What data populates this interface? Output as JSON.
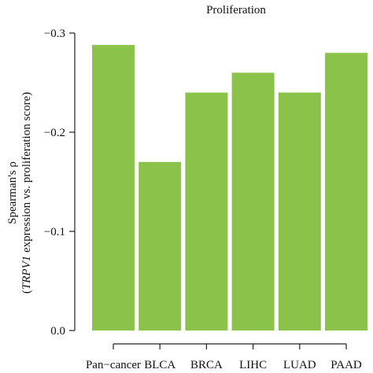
{
  "chart_data": {
    "type": "bar",
    "title": "Proliferation",
    "ylabel_line1": "Spearman's ρ",
    "ylabel_line2_italic": "TRPV1",
    "ylabel_line2_rest": " expression vs. proliferation score",
    "xlabel": "",
    "categories": [
      "Pan−cancer",
      "BLCA",
      "BRCA",
      "LIHC",
      "LUAD",
      "PAAD"
    ],
    "values": [
      -0.288,
      -0.17,
      -0.24,
      -0.26,
      -0.24,
      -0.28
    ],
    "ylim": [
      0,
      -0.3
    ],
    "yticks": [
      {
        "value": 0.0,
        "label": "0.0"
      },
      {
        "value": -0.1,
        "label": "−0.1"
      },
      {
        "value": -0.2,
        "label": "−0.2"
      },
      {
        "value": -0.3,
        "label": "−0.3"
      }
    ],
    "bar_color": "#8bc34a",
    "axis_color": "#222222",
    "grid": false,
    "legend": "none"
  }
}
